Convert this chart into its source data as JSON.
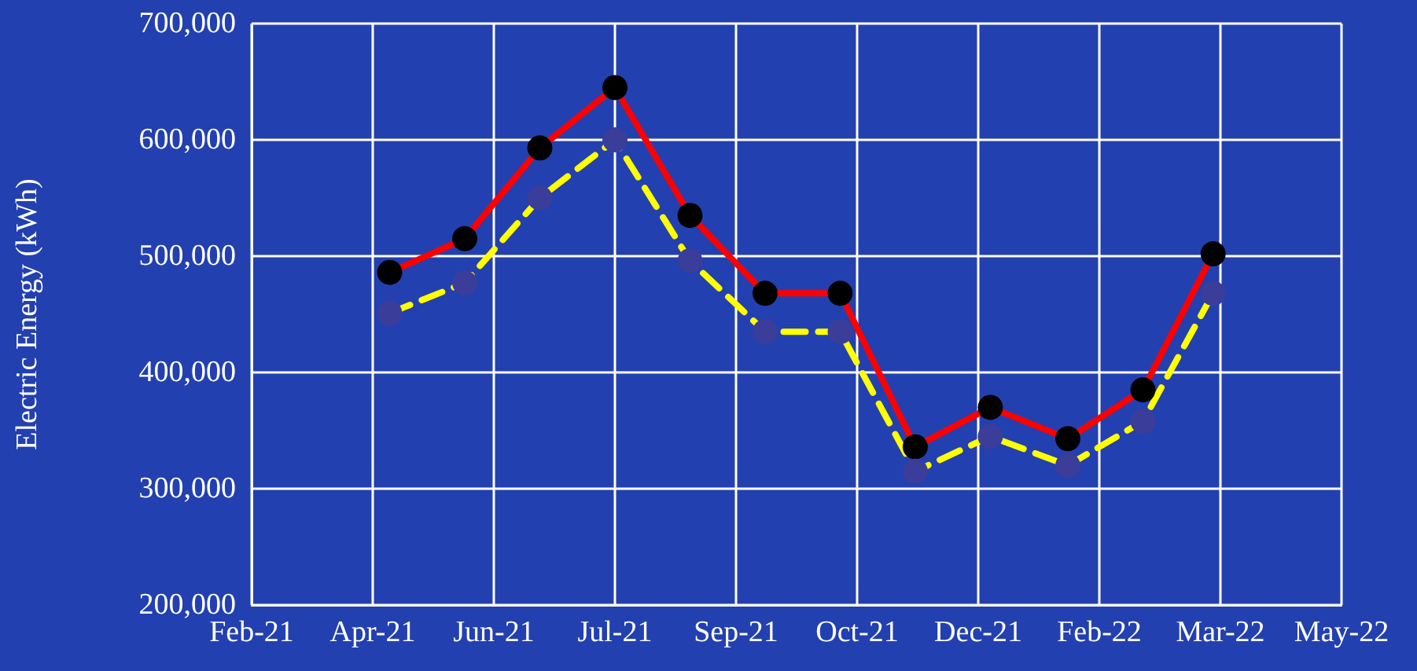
{
  "chart_data": {
    "type": "line",
    "ylabel": "Electric Energy (kWh)",
    "x": [
      "2021-04-20",
      "2021-05-21",
      "2021-06-21",
      "2021-07-22",
      "2021-08-22",
      "2021-09-22",
      "2021-10-23",
      "2021-11-23",
      "2021-12-24",
      "2022-01-25",
      "2022-02-25",
      "2022-03-26"
    ],
    "series": [
      {
        "color": "#ff0000",
        "line_style": "solid",
        "colors": [
          "#000000",
          "#000000",
          "#000000",
          "#000000",
          "#000000",
          "#000000",
          "#000000",
          "#000000",
          "#000000",
          "#000000",
          "#000000",
          "#000000"
        ],
        "values": [
          486000,
          515000,
          593000,
          645000,
          535000,
          468000,
          468000,
          336000,
          370000,
          343000,
          385000,
          502000
        ]
      },
      {
        "color": "#ffff00",
        "line_style": "dashed",
        "colors": [
          "#3a3d99",
          "#3a3d99",
          "#3a3d99",
          "#3a3d99",
          "#3a3d99",
          "#3a3d99",
          "#3a3d99",
          "#3a3d99",
          "#3a3d99",
          "#3a3d99",
          "#3a3d99",
          "#3a3d99"
        ],
        "values": [
          451000,
          477000,
          550000,
          600000,
          496000,
          435000,
          435000,
          315000,
          345000,
          320000,
          358000,
          468000
        ]
      }
    ],
    "xlim": [
      "2021-02-22",
      "2022-05-18"
    ],
    "xticks": [
      {
        "value": "2021-02-22",
        "label": "Feb-21"
      },
      {
        "value": "2021-04-13",
        "label": "Apr-21"
      },
      {
        "value": "2021-06-02",
        "label": "Jun-21"
      },
      {
        "value": "2021-07-22",
        "label": "Jul-21"
      },
      {
        "value": "2021-09-10",
        "label": "Sep-21"
      },
      {
        "value": "2021-10-30",
        "label": "Oct-21"
      },
      {
        "value": "2021-12-19",
        "label": "Dec-21"
      },
      {
        "value": "2022-02-07",
        "label": "Feb-22"
      },
      {
        "value": "2022-03-29",
        "label": "Mar-22"
      },
      {
        "value": "2022-05-18",
        "label": "May-22"
      }
    ],
    "ylim": [
      200000,
      700000
    ],
    "yticks": [
      {
        "value": 200000,
        "label": "200,000"
      },
      {
        "value": 300000,
        "label": "300,000"
      },
      {
        "value": 400000,
        "label": "400,000"
      },
      {
        "value": 500000,
        "label": "500,000"
      },
      {
        "value": 600000,
        "label": "600,000"
      },
      {
        "value": 700000,
        "label": "700,000"
      }
    ],
    "grid": true,
    "marker": "circle"
  }
}
